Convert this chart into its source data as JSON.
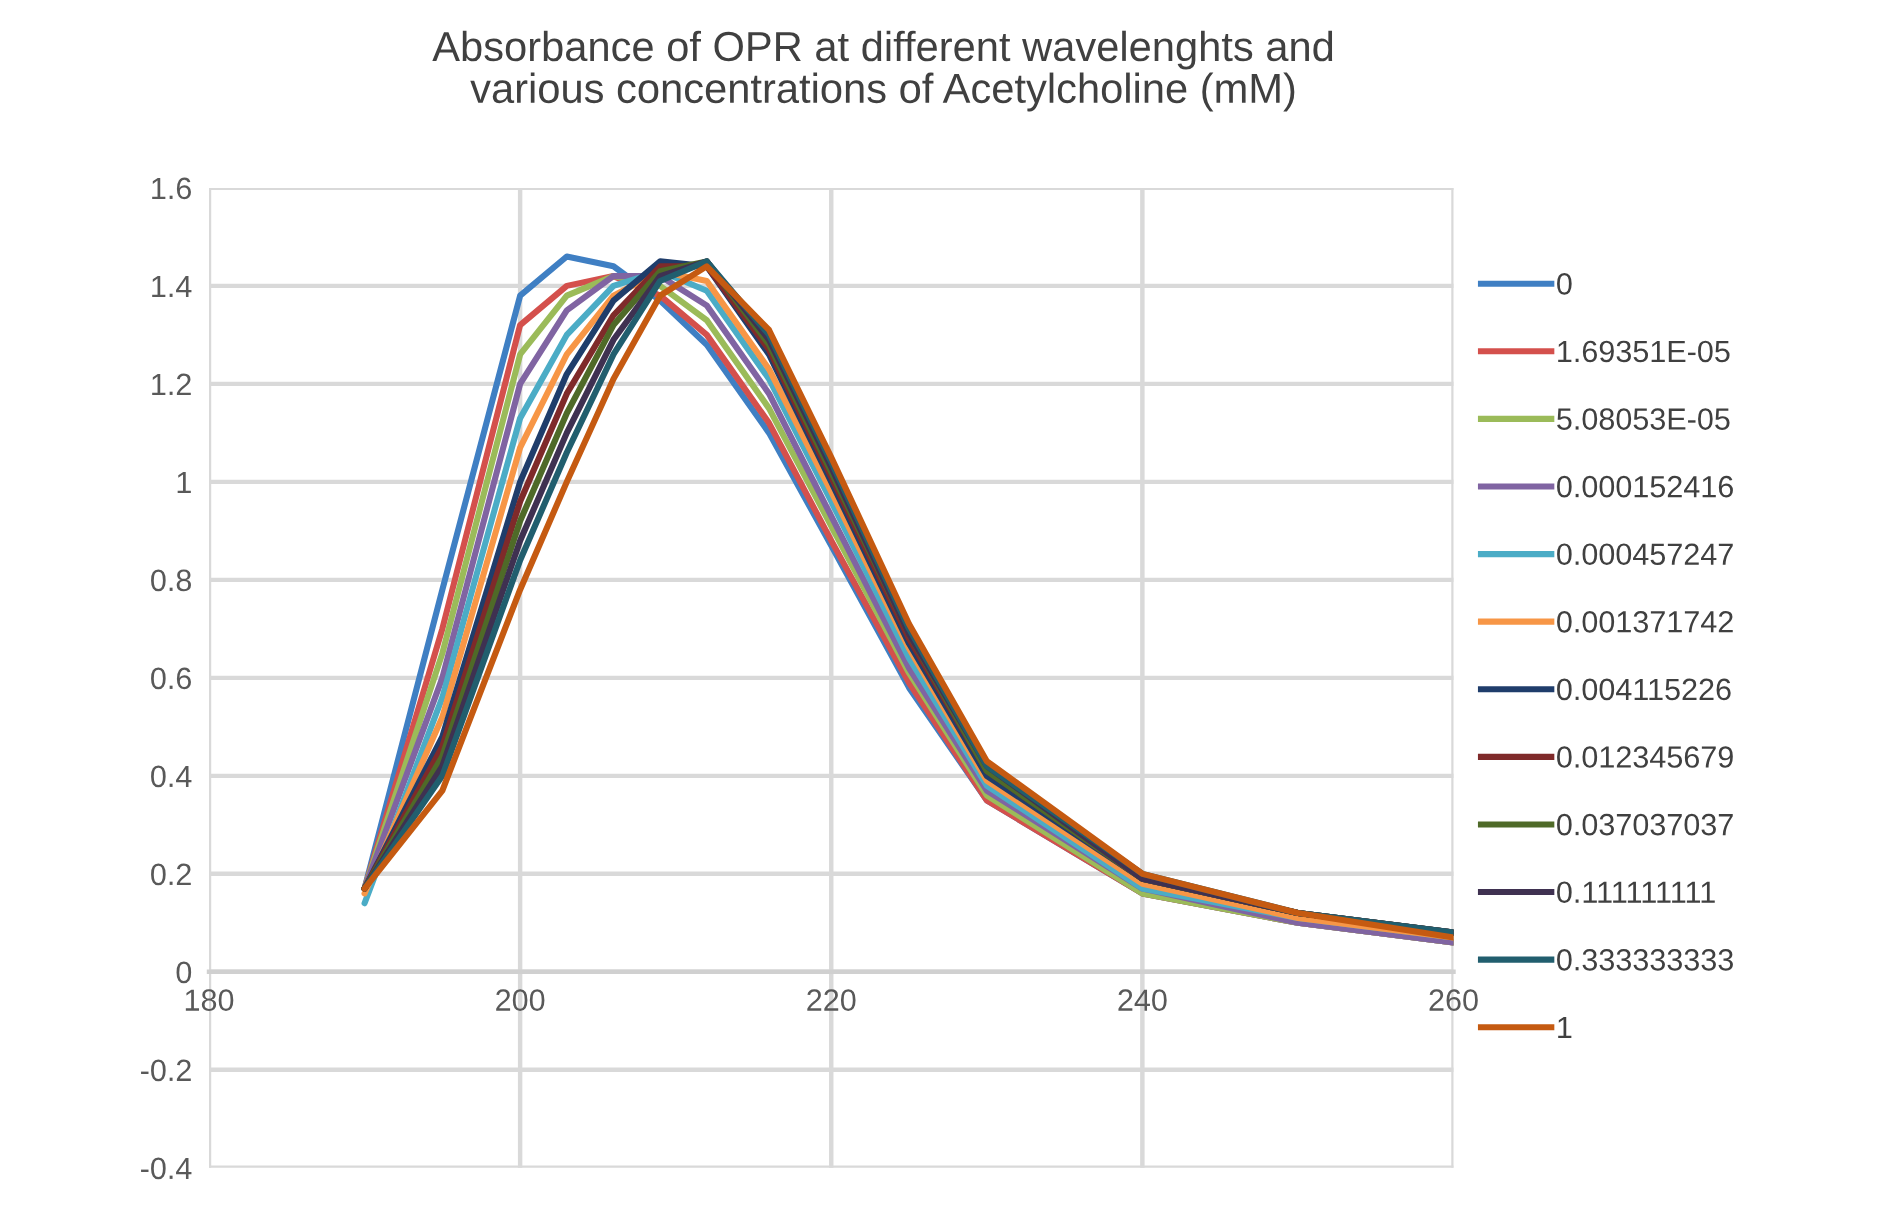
{
  "chart_data": {
    "type": "line",
    "title": "Absorbance of OPR at different wavelenghts and\nvarious concentrations of Acetylcholine (mM)",
    "x": [
      190,
      195,
      200,
      203,
      206,
      209,
      212,
      216,
      220,
      225,
      230,
      240,
      250,
      260
    ],
    "xlim": [
      180,
      260
    ],
    "xticks": [
      180,
      200,
      220,
      240,
      260
    ],
    "ylim": [
      -0.4,
      1.6
    ],
    "yticks": [
      {
        "value": -0.4,
        "label": "-0.4"
      },
      {
        "value": -0.2,
        "label": "-0.2"
      },
      0,
      0.2,
      0.4,
      0.6,
      0.8,
      1,
      1.2,
      1.4,
      1.6
    ],
    "grid": true,
    "legend": "right",
    "marker": "none",
    "line_style": "solid",
    "series": [
      {
        "name": "0",
        "color": "#3f7fc3",
        "values": [
          0.17,
          0.78,
          1.38,
          1.46,
          1.44,
          1.37,
          1.28,
          1.1,
          0.87,
          0.58,
          0.35,
          0.16,
          0.1,
          0.06
        ]
      },
      {
        "name": "1.69351E-05",
        "color": "#d4504c",
        "values": [
          0.17,
          0.7,
          1.32,
          1.4,
          1.42,
          1.38,
          1.3,
          1.12,
          0.88,
          0.59,
          0.35,
          0.16,
          0.1,
          0.06
        ]
      },
      {
        "name": "5.08053E-05",
        "color": "#9bbb59",
        "values": [
          0.17,
          0.65,
          1.26,
          1.38,
          1.42,
          1.4,
          1.33,
          1.15,
          0.91,
          0.61,
          0.36,
          0.16,
          0.1,
          0.06
        ]
      },
      {
        "name": "0.000152416",
        "color": "#8064a2",
        "values": [
          0.17,
          0.6,
          1.2,
          1.35,
          1.42,
          1.42,
          1.36,
          1.18,
          0.93,
          0.62,
          0.37,
          0.17,
          0.1,
          0.06
        ]
      },
      {
        "name": "0.000457247",
        "color": "#4bacc6",
        "values": [
          0.14,
          0.56,
          1.13,
          1.3,
          1.4,
          1.43,
          1.39,
          1.21,
          0.96,
          0.64,
          0.38,
          0.17,
          0.11,
          0.07
        ]
      },
      {
        "name": "0.001371742",
        "color": "#f79646",
        "values": [
          0.16,
          0.52,
          1.07,
          1.26,
          1.38,
          1.43,
          1.41,
          1.23,
          0.98,
          0.66,
          0.39,
          0.18,
          0.11,
          0.07
        ]
      },
      {
        "name": "0.004115226",
        "color": "#1f3d6b",
        "values": [
          0.17,
          0.48,
          1.0,
          1.22,
          1.37,
          1.45,
          1.44,
          1.26,
          1.0,
          0.67,
          0.4,
          0.19,
          0.12,
          0.08
        ]
      },
      {
        "name": "0.012345679",
        "color": "#7f2a2a",
        "values": [
          0.17,
          0.46,
          0.96,
          1.18,
          1.34,
          1.44,
          1.44,
          1.27,
          1.01,
          0.68,
          0.41,
          0.19,
          0.12,
          0.08
        ]
      },
      {
        "name": "0.037037037",
        "color": "#4f6a28",
        "values": [
          0.17,
          0.44,
          0.92,
          1.14,
          1.32,
          1.43,
          1.45,
          1.28,
          1.02,
          0.69,
          0.41,
          0.19,
          0.12,
          0.08
        ]
      },
      {
        "name": "0.111111111",
        "color": "#3f3151",
        "values": [
          0.17,
          0.42,
          0.88,
          1.1,
          1.29,
          1.42,
          1.45,
          1.29,
          1.03,
          0.69,
          0.42,
          0.19,
          0.12,
          0.08
        ]
      },
      {
        "name": "0.333333333",
        "color": "#215e6e",
        "values": [
          0.17,
          0.4,
          0.84,
          1.06,
          1.26,
          1.41,
          1.45,
          1.3,
          1.04,
          0.7,
          0.42,
          0.2,
          0.12,
          0.08
        ]
      },
      {
        "name": "1",
        "color": "#c55a11",
        "values": [
          0.17,
          0.37,
          0.78,
          1.0,
          1.21,
          1.38,
          1.44,
          1.31,
          1.05,
          0.71,
          0.43,
          0.2,
          0.12,
          0.07
        ]
      }
    ]
  }
}
